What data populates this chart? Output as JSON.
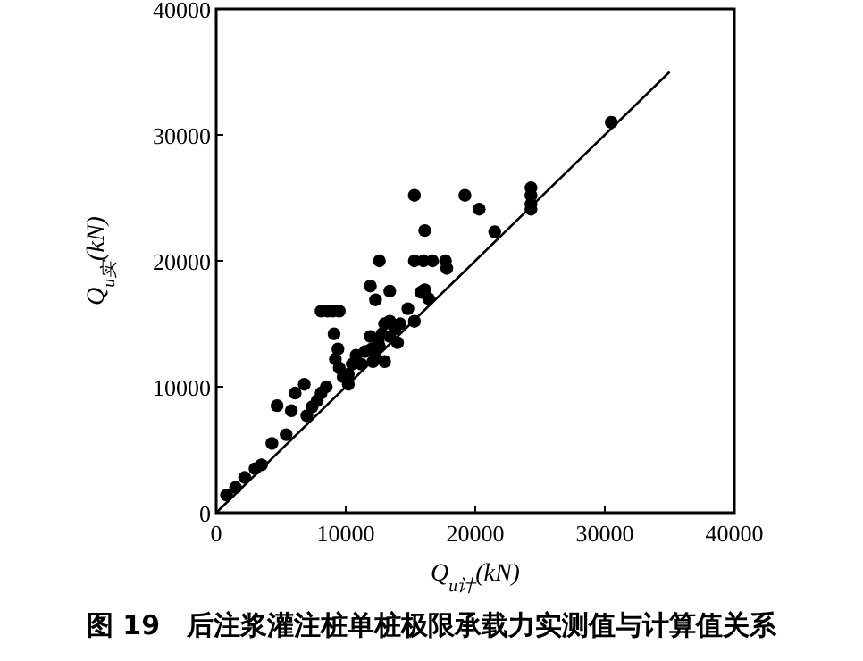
{
  "chart_data": {
    "type": "scatter",
    "xlabel": "Q$_{u计}$(kN)",
    "ylabel": "Q$_{u实}$(kN)",
    "annotations": [
      "图 19　后注浆灌注桩单桩极限承载力实测值与计算值关系"
    ],
    "xlim": [
      0,
      40000
    ],
    "ylim": [
      0,
      40000
    ],
    "xticks": [
      0,
      10000,
      20000,
      30000,
      40000
    ],
    "yticks": [
      0,
      10000,
      20000,
      30000,
      40000
    ],
    "grid": false,
    "series": [
      {
        "marker": "circle",
        "color": "#000000",
        "x": [
          800,
          1500,
          2200,
          3000,
          3500,
          4300,
          4700,
          5400,
          5800,
          6100,
          6800,
          7000,
          7400,
          7800,
          8100,
          8500,
          9100,
          9400,
          9200,
          9500,
          9800,
          10200,
          10500,
          10800,
          11200,
          11500,
          11900,
          12000,
          12100,
          12300,
          12500,
          12800,
          13000,
          13400,
          13400,
          13800,
          14200,
          14800,
          15300,
          15300,
          16100,
          16400,
          16000,
          16700,
          17700,
          17800,
          12300,
          12600,
          11900,
          13400,
          15300,
          16100,
          19200,
          20300,
          21500,
          24300,
          24300,
          24300,
          24300,
          30500,
          8100,
          8600,
          9000,
          9500,
          12600,
          10200,
          13000,
          14000,
          15800
        ],
        "values": [
          1400,
          2000,
          2800,
          3500,
          3800,
          5500,
          8500,
          6200,
          8100,
          9500,
          10200,
          7700,
          8400,
          8900,
          9500,
          10000,
          14200,
          13000,
          12200,
          11500,
          10800,
          10200,
          11800,
          12500,
          11800,
          12800,
          14000,
          13000,
          12000,
          12400,
          13600,
          14200,
          15000,
          14000,
          15200,
          14600,
          15000,
          16200,
          15200,
          20000,
          17700,
          17000,
          20000,
          20000,
          20000,
          19400,
          16900,
          20000,
          18000,
          17600,
          25200,
          22400,
          25200,
          24100,
          22300,
          25800,
          25200,
          24500,
          24100,
          31000,
          16000,
          16000,
          16000,
          16000,
          13200,
          11000,
          12000,
          13500,
          17500
        ]
      },
      {
        "type": "line",
        "color": "#000000",
        "x": [
          0,
          35000
        ],
        "values": [
          0,
          35000
        ]
      }
    ]
  }
}
